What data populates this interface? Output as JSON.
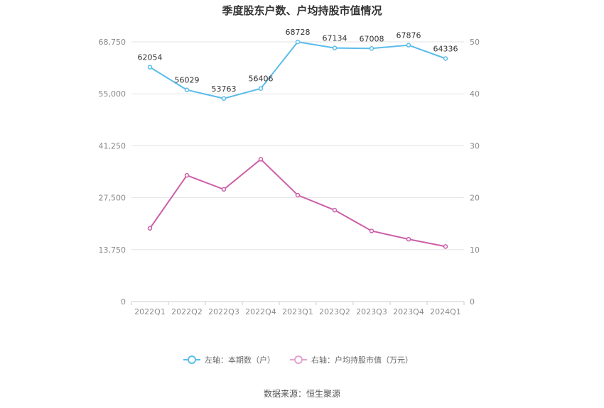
{
  "chart_data": {
    "type": "line",
    "title": "季度股东户数、户均持股市值情况",
    "categories": [
      "2022Q1",
      "2022Q2",
      "2022Q3",
      "2022Q4",
      "2023Q1",
      "2023Q2",
      "2023Q3",
      "2023Q4",
      "2024Q1"
    ],
    "left_axis": {
      "ticks": [
        0,
        13750,
        27500,
        41250,
        55000,
        68750
      ],
      "tick_labels": [
        "0",
        "13,750",
        "27,500",
        "41,250",
        "55,000",
        "68,750"
      ],
      "ylim": [
        0,
        68750
      ]
    },
    "right_axis": {
      "ticks": [
        0,
        10,
        20,
        30,
        40,
        50
      ],
      "tick_labels": [
        "0",
        "10",
        "20",
        "30",
        "40",
        "50"
      ],
      "ylim": [
        0,
        50
      ]
    },
    "series": [
      {
        "name": "左轴：本期数（户）",
        "axis": "left",
        "color": "#5bbcec",
        "values": [
          62054,
          56029,
          53763,
          56406,
          68728,
          67134,
          67008,
          67876,
          64336
        ],
        "labels": [
          "62054",
          "56029",
          "53763",
          "56406",
          "68728",
          "67134",
          "67008",
          "67876",
          "64336"
        ]
      },
      {
        "name": "右轴：户均持股市值（万元）",
        "axis": "right",
        "color": "#cc5fa8",
        "legend_color": "#e2a3d0",
        "values": [
          14.1,
          24.3,
          21.6,
          27.4,
          20.5,
          17.6,
          13.6,
          12.0,
          10.6
        ]
      }
    ],
    "grid": true,
    "legend_position": "bottom"
  },
  "source": "数据来源：恒生聚源"
}
